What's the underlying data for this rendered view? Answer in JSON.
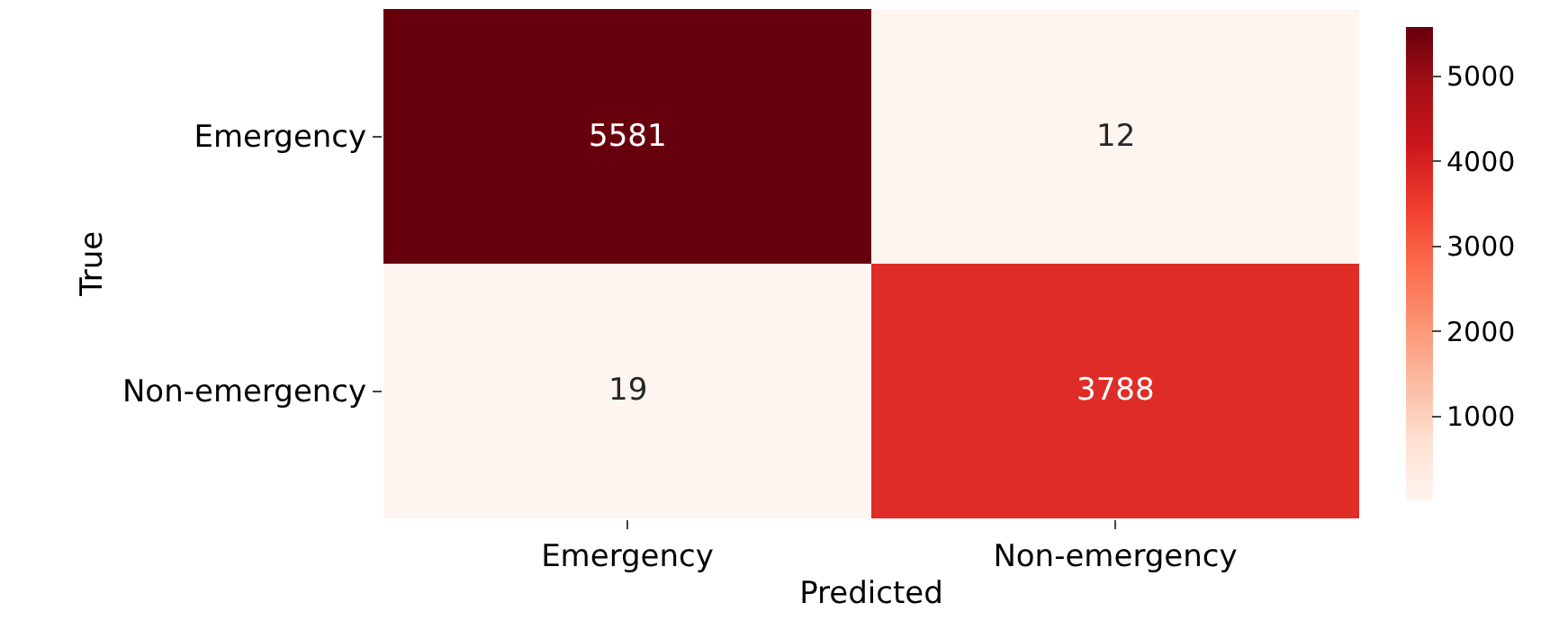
{
  "chart_data": {
    "type": "heatmap",
    "xlabel": "Predicted",
    "ylabel": "True",
    "categories": [
      "Emergency",
      "Non-emergency"
    ],
    "y_categories": [
      "Emergency",
      "Non-emergency"
    ],
    "cells": [
      [
        5581,
        12
      ],
      [
        19,
        3788
      ]
    ],
    "data_labels": true,
    "clim": [
      12,
      5581
    ],
    "cticks": [
      1000,
      2000,
      3000,
      4000,
      5000
    ]
  }
}
